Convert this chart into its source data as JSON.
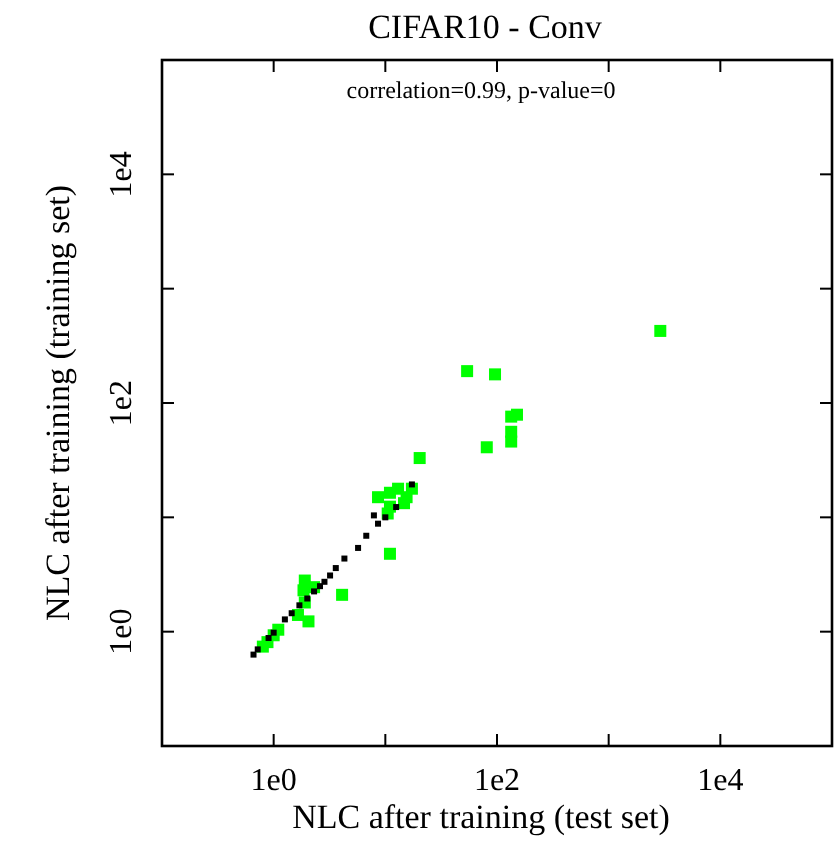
{
  "chart_data": {
    "type": "scatter",
    "title": "CIFAR10 - Conv",
    "xlabel": "NLC after training (test set)",
    "ylabel": "NLC after training (training set)",
    "annotations": [
      "correlation=0.99, p-value=0"
    ],
    "log": "xy",
    "marker": "square",
    "grid": false,
    "xlim": [
      0.1,
      100000
    ],
    "ylim": [
      0.1,
      100000
    ],
    "xticks": [
      {
        "value": 1,
        "label": "1e0"
      },
      {
        "value": 10,
        "label": null
      },
      {
        "value": 100,
        "label": "1e2"
      },
      {
        "value": 1000,
        "label": null
      },
      {
        "value": 10000,
        "label": "1e4"
      }
    ],
    "yticks": [
      {
        "value": 1,
        "label": "1e0"
      },
      {
        "value": 10,
        "label": null
      },
      {
        "value": 100,
        "label": "1e2"
      },
      {
        "value": 1000,
        "label": null
      },
      {
        "value": 10000,
        "label": "1e4"
      }
    ],
    "series": [
      {
        "color": "#000000",
        "x": [
          0.66,
          0.72,
          0.9,
          1.0,
          1.26,
          1.45,
          1.7,
          2.0,
          2.3,
          2.6,
          2.85,
          3.2,
          3.6,
          4.3,
          5.7,
          6.75,
          7.9,
          8.6,
          10.0,
          12.5,
          17.3
        ],
        "values": [
          0.63,
          0.7,
          0.88,
          0.98,
          1.28,
          1.45,
          1.7,
          1.95,
          2.25,
          2.5,
          2.73,
          3.1,
          3.6,
          4.36,
          5.4,
          6.9,
          10.4,
          8.8,
          10.0,
          12.3,
          19.4
        ]
      },
      {
        "color": "#00ff00",
        "x": [
          0.8,
          0.88,
          1.0,
          1.1,
          1.65,
          2.05,
          1.9,
          1.85,
          2.3,
          1.9,
          4.1,
          10.5,
          11,
          11,
          11,
          13,
          14.7,
          15.5,
          17.3,
          8.6,
          20.3,
          54,
          96,
          81,
          134,
          134,
          134,
          151,
          2900
        ],
        "values": [
          0.74,
          0.81,
          0.93,
          1.04,
          1.4,
          1.23,
          1.8,
          2.3,
          2.45,
          2.8,
          2.1,
          10.8,
          12.4,
          4.8,
          16.4,
          17.8,
          13.3,
          15,
          17.8,
          15,
          33,
          190,
          178,
          41,
          76,
          56,
          46,
          79,
          427
        ]
      }
    ]
  }
}
